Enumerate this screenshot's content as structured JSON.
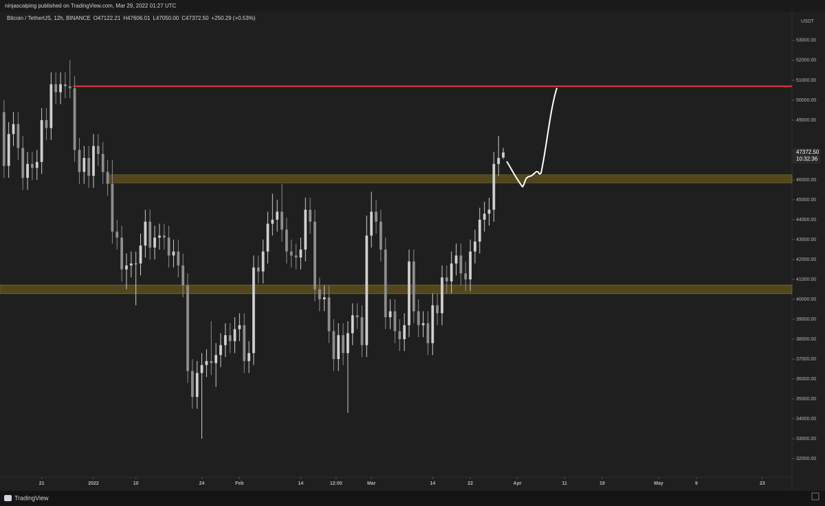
{
  "chart_data": {
    "type": "candlestick",
    "published": "ninjascalping published on TradingView.com, Mar 29, 2022 01:27 UTC",
    "symbol": "Bitcoin / TetherUS, 12h, BINANCE",
    "header_values": [
      "O47122.21",
      "H47606.01",
      "L47050.00",
      "C47372.50",
      "+250.29 (+0.53%)"
    ],
    "currency": "USDT",
    "last_price": "47372.50",
    "countdown": "10:32:36",
    "brand": "TradingView",
    "x": [
      -19,
      -18,
      -17,
      -16,
      -15,
      -14,
      -13,
      -12,
      -11,
      -10,
      -9,
      -8,
      -7,
      -6,
      -5,
      -4,
      -3,
      -2,
      -1,
      0,
      1,
      2,
      3,
      4,
      5,
      6,
      7,
      8,
      9,
      10,
      11,
      12,
      13,
      14,
      15,
      16,
      17,
      18,
      19,
      20,
      21,
      22,
      23,
      24,
      25,
      26,
      27,
      28,
      29,
      30,
      31,
      32,
      33,
      34,
      35,
      36,
      37,
      38,
      39,
      40,
      41,
      42,
      43,
      44,
      45,
      46,
      47,
      48,
      49,
      50,
      51,
      52,
      53,
      54,
      55,
      56,
      57,
      58,
      59,
      60,
      61,
      62,
      63,
      64,
      65,
      66,
      67,
      68,
      69,
      70,
      71,
      72,
      73,
      74,
      75,
      76,
      77,
      78,
      79,
      80,
      81,
      82,
      83,
      84,
      85,
      86,
      87
    ],
    "open": [
      49400,
      46700,
      48300,
      48800,
      47600,
      46100,
      46800,
      46600,
      46900,
      49000,
      48600,
      50800,
      50400,
      50800,
      50700,
      50600,
      47500,
      46400,
      47100,
      46200,
      47700,
      47300,
      46400,
      45800,
      43400,
      43100,
      41500,
      41700,
      41800,
      41800,
      42700,
      43900,
      42600,
      43100,
      43200,
      43100,
      42200,
      42400,
      41700,
      40700,
      36400,
      35100,
      36300,
      36700,
      36900,
      36800,
      37200,
      37700,
      38200,
      37900,
      38500,
      38700,
      36900,
      37300,
      41600,
      41400,
      42400,
      43800,
      44000,
      44400,
      43500,
      42400,
      42200,
      42100,
      42500,
      44500,
      43900,
      40500,
      40000,
      40100,
      38400,
      37000,
      38200,
      37300,
      38300,
      39200,
      39100,
      37700,
      43200,
      44400,
      43900,
      42500,
      39100,
      39400,
      38400,
      38000,
      38700,
      41900,
      39400,
      38700,
      38800,
      37800,
      39700,
      39300,
      41100,
      40900,
      41800,
      42200,
      41300,
      41000,
      42400,
      42900,
      44000,
      44300,
      44500,
      46800,
      47122.21
    ],
    "high": [
      50000,
      48900,
      49400,
      49400,
      48200,
      47400,
      47400,
      47500,
      49600,
      49600,
      51400,
      51400,
      51400,
      51400,
      52000,
      51200,
      48100,
      47700,
      47700,
      48300,
      48300,
      47900,
      47000,
      47000,
      44000,
      43700,
      42300,
      42400,
      42400,
      43300,
      44500,
      44500,
      43700,
      43800,
      43800,
      43700,
      43000,
      43000,
      42300,
      41300,
      37000,
      36900,
      37300,
      37500,
      38900,
      37800,
      38300,
      38800,
      38800,
      39100,
      39300,
      39300,
      37900,
      42200,
      42200,
      43000,
      44400,
      45300,
      45000,
      45800,
      44100,
      43000,
      42800,
      43100,
      45100,
      45100,
      44500,
      41100,
      40700,
      40700,
      39000,
      38800,
      38800,
      38900,
      39800,
      39800,
      39700,
      44200,
      45400,
      45000,
      44500,
      43100,
      40000,
      40000,
      39000,
      39300,
      42500,
      42500,
      40000,
      39400,
      39400,
      40300,
      40300,
      41700,
      41700,
      42400,
      42800,
      42800,
      41900,
      43000,
      43500,
      44600,
      44900,
      45100,
      47400,
      48200,
      47606.01
    ],
    "low": [
      46100,
      46100,
      47700,
      47000,
      45500,
      45500,
      46000,
      46000,
      46300,
      48000,
      48000,
      49800,
      49800,
      50100,
      50100,
      46900,
      45800,
      45800,
      45600,
      45600,
      46700,
      45800,
      45200,
      42800,
      42500,
      40900,
      40500,
      41100,
      39700,
      41200,
      42100,
      42000,
      42000,
      42500,
      42500,
      41600,
      41600,
      41100,
      40100,
      35800,
      34500,
      34500,
      33000,
      36100,
      36200,
      35600,
      36600,
      37100,
      37300,
      37300,
      37900,
      36300,
      36300,
      36700,
      40800,
      40800,
      41800,
      43200,
      43400,
      42900,
      41800,
      41600,
      41500,
      41500,
      41900,
      43300,
      39900,
      39400,
      39400,
      37800,
      36400,
      36400,
      36700,
      34300,
      37700,
      38500,
      37100,
      37100,
      42600,
      43300,
      41900,
      38500,
      38500,
      37800,
      37400,
      37400,
      38100,
      38800,
      38100,
      38100,
      37200,
      37200,
      38700,
      38700,
      40300,
      40300,
      41200,
      40700,
      40400,
      40400,
      41800,
      42300,
      43400,
      43700,
      43900,
      46200,
      47050
    ],
    "close": [
      46700,
      48300,
      48800,
      47600,
      46100,
      46800,
      46600,
      46900,
      49000,
      48600,
      50800,
      50400,
      50800,
      50700,
      50600,
      47500,
      46400,
      47100,
      46200,
      47700,
      47300,
      46400,
      45800,
      43400,
      43100,
      41500,
      41700,
      41800,
      41800,
      42700,
      43900,
      42600,
      43100,
      43200,
      43100,
      42200,
      42400,
      41700,
      40700,
      36400,
      35100,
      36300,
      36700,
      36900,
      36800,
      37200,
      37700,
      38200,
      37900,
      38500,
      38700,
      36900,
      37300,
      41600,
      41400,
      42400,
      43800,
      44000,
      44400,
      43500,
      42400,
      42200,
      42100,
      42500,
      44500,
      43900,
      40500,
      40000,
      40100,
      38400,
      37000,
      38200,
      37300,
      38300,
      39200,
      39100,
      37700,
      43200,
      44400,
      43900,
      42500,
      39100,
      39400,
      38400,
      38000,
      38700,
      41900,
      39400,
      38700,
      38800,
      37800,
      39700,
      39300,
      41100,
      40900,
      41800,
      42200,
      41300,
      41000,
      42400,
      42900,
      44000,
      44300,
      44500,
      46800,
      47100,
      47372.5
    ],
    "up_color": "#cfcfcf",
    "down_color": "#8e8e8e",
    "zones": [
      {
        "start": 2.8,
        "low": 45850,
        "high": 46250
      },
      {
        "start": -19.85,
        "low": 40280,
        "high": 40720
      }
    ],
    "zone_color": "#5c4f1c",
    "levels": [
      {
        "start": -4.3,
        "value": 50700,
        "color": "#f23645"
      }
    ],
    "xlim": [
      -19.85,
      148.3
    ],
    "xticks": [
      {
        "value": -11,
        "label": "21"
      },
      {
        "value": 0,
        "label": "2022"
      },
      {
        "value": 9,
        "label": "10"
      },
      {
        "value": 23,
        "label": "24"
      },
      {
        "value": 31,
        "label": "Feb"
      },
      {
        "value": 44,
        "label": "14"
      },
      {
        "value": 51.5,
        "label": "12:00"
      },
      {
        "value": 59,
        "label": "Mar"
      },
      {
        "value": 72,
        "label": "14"
      },
      {
        "value": 80,
        "label": "22"
      },
      {
        "value": 90,
        "label": "Apr"
      },
      {
        "value": 100,
        "label": "11"
      },
      {
        "value": 108,
        "label": "19"
      },
      {
        "value": 120,
        "label": "May"
      },
      {
        "value": 128,
        "label": "9"
      },
      {
        "value": 142,
        "label": "23"
      }
    ],
    "ylim": [
      31070,
      54410
    ],
    "yticks": [
      {
        "value": 32000,
        "label": "32000.00"
      },
      {
        "value": 33000,
        "label": "33000.00"
      },
      {
        "value": 34000,
        "label": "34000.00"
      },
      {
        "value": 35000,
        "label": "35000.00"
      },
      {
        "value": 36000,
        "label": "36000.00"
      },
      {
        "value": 37000,
        "label": "37000.00"
      },
      {
        "value": 38000,
        "label": "38000.00"
      },
      {
        "value": 39000,
        "label": "39000.00"
      },
      {
        "value": 40000,
        "label": "40000.00"
      },
      {
        "value": 41000,
        "label": "41000.00"
      },
      {
        "value": 42000,
        "label": "42000.00"
      },
      {
        "value": 43000,
        "label": "43000.00"
      },
      {
        "value": 44000,
        "label": "44000.00"
      },
      {
        "value": 45000,
        "label": "45000.00"
      },
      {
        "value": 46000,
        "label": "46000.00"
      },
      {
        "value": 49000,
        "label": "49000.00"
      },
      {
        "value": 50000,
        "label": "50000.00"
      },
      {
        "value": 51000,
        "label": "51000.00"
      },
      {
        "value": 52000,
        "label": "52000.00"
      },
      {
        "value": 53000,
        "label": "53000.00"
      }
    ]
  }
}
